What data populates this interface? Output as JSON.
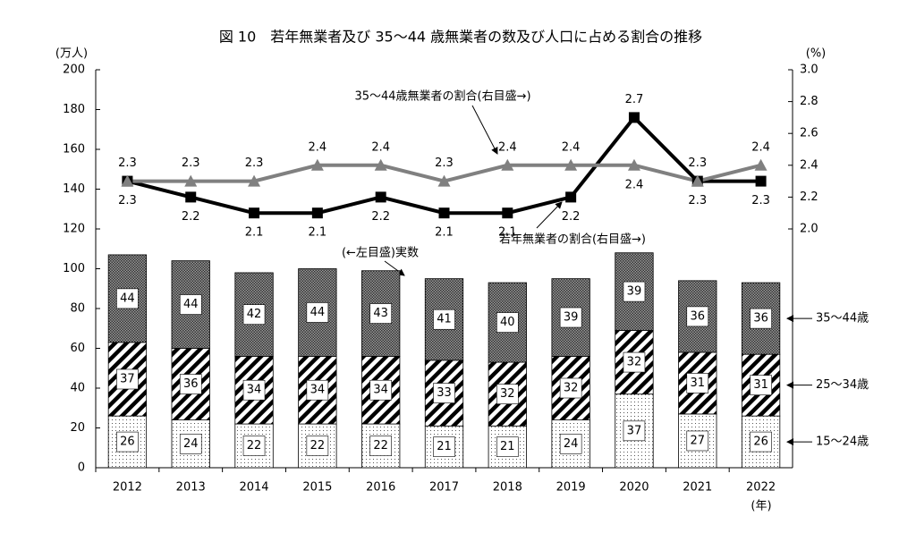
{
  "chart_data": {
    "type": "bar",
    "title": "図 10　若年無業者及び 35〜44 歳無業者の数及び人口に占める割合の推移",
    "y_unit": "(万人)",
    "y2_unit": "(%)",
    "x_unit": "(年)",
    "annotations": [
      "(←左目盛)実数"
    ],
    "categories": [
      "2012",
      "2013",
      "2014",
      "2015",
      "2016",
      "2017",
      "2018",
      "2019",
      "2020",
      "2021",
      "2022"
    ],
    "ylim": [
      0,
      200
    ],
    "yticks": [
      0,
      20,
      40,
      60,
      80,
      100,
      120,
      140,
      160,
      180,
      200
    ],
    "y2lim": [
      0.5,
      3
    ],
    "y2ticks": [
      {
        "value": 2,
        "label": "2.0"
      },
      2.2,
      2.4,
      2.6,
      2.8,
      {
        "value": 3,
        "label": "3.0"
      }
    ],
    "series": [
      {
        "name": "15〜24歳",
        "type": "bar",
        "pattern": "dots",
        "color": "#555555",
        "values": [
          26,
          24,
          22,
          22,
          22,
          21,
          21,
          24,
          37,
          27,
          26
        ]
      },
      {
        "name": "25〜34歳",
        "type": "bar",
        "pattern": "stripes",
        "color": "#000000",
        "values": [
          37,
          36,
          34,
          34,
          34,
          33,
          32,
          32,
          32,
          31,
          31
        ]
      },
      {
        "name": "35〜44歳",
        "type": "bar",
        "pattern": "crosshatch",
        "color": "#333333",
        "values": [
          44,
          44,
          42,
          44,
          43,
          41,
          40,
          39,
          39,
          36,
          36
        ]
      },
      {
        "name": "若年無業者の割合(右目盛→)",
        "type": "line",
        "axis": "y2",
        "marker": "square",
        "color": "#000000",
        "values": [
          2.3,
          2.2,
          2.1,
          2.1,
          2.2,
          2.1,
          2.1,
          2.2,
          2.7,
          2.3,
          2.3
        ]
      },
      {
        "name": "35〜44歳無業者の割合(右目盛→)",
        "type": "line",
        "axis": "y2",
        "marker": "triangle",
        "color": "#808080",
        "values": [
          2.3,
          2.3,
          2.3,
          2.4,
          2.4,
          2.3,
          2.4,
          2.4,
          2.4,
          2.3,
          2.4
        ]
      }
    ]
  }
}
